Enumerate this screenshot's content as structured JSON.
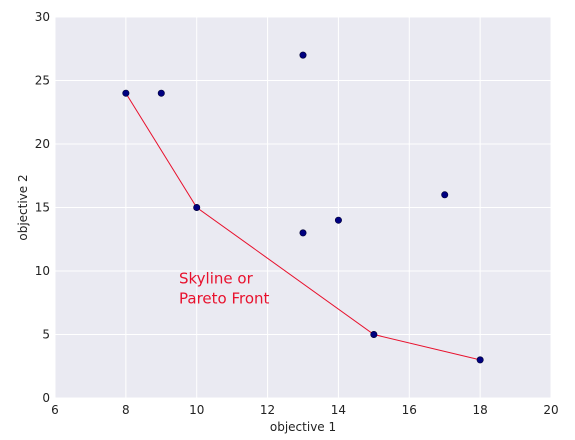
{
  "chart_data": {
    "type": "scatter",
    "title": "",
    "xlabel": "objective 1",
    "ylabel": "objective 2",
    "xlim": [
      6,
      20
    ],
    "ylim": [
      0,
      30
    ],
    "xticks": [
      "6",
      "8",
      "10",
      "12",
      "14",
      "16",
      "18",
      "20"
    ],
    "yticks": [
      "0",
      "5",
      "10",
      "15",
      "20",
      "25",
      "30"
    ],
    "grid": true,
    "background": "#eaeaf2",
    "grid_color": "#ffffff",
    "series": [
      {
        "type": "scatter",
        "color": "#000080",
        "points": [
          {
            "x": 8,
            "y": 24
          },
          {
            "x": 9,
            "y": 24
          },
          {
            "x": 13,
            "y": 27
          },
          {
            "x": 10,
            "y": 15
          },
          {
            "x": 13,
            "y": 13
          },
          {
            "x": 14,
            "y": 14
          },
          {
            "x": 17,
            "y": 16
          },
          {
            "x": 15,
            "y": 5
          },
          {
            "x": 18,
            "y": 3
          }
        ]
      },
      {
        "type": "line",
        "color": "#e8112d",
        "points": [
          {
            "x": 8,
            "y": 24
          },
          {
            "x": 10,
            "y": 15
          },
          {
            "x": 15,
            "y": 5
          },
          {
            "x": 18,
            "y": 3
          }
        ]
      }
    ],
    "annotation": {
      "lines": [
        "Skyline or",
        "Pareto Front"
      ],
      "color": "#e8112d",
      "x": 9.5,
      "y": 9
    }
  }
}
